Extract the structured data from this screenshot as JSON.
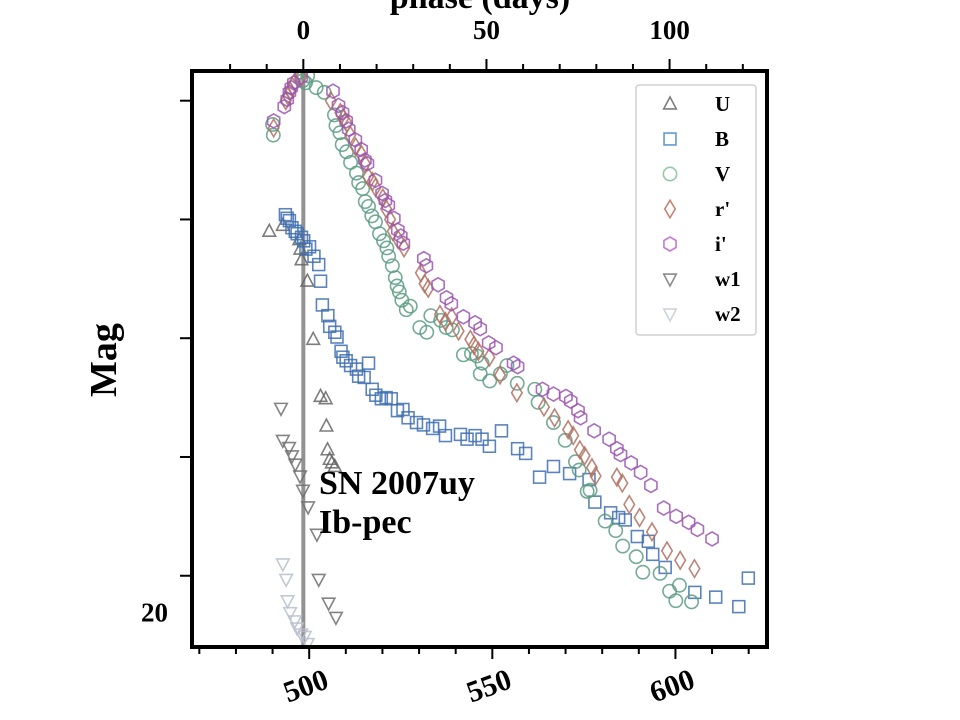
{
  "chart_data": {
    "type": "scatter",
    "title": "",
    "xlabel": "",
    "top_xlabel": "phase (days)",
    "ylabel": "Mag",
    "xlim": [
      468,
      625
    ],
    "ylim": [
      20.3,
      15.45
    ],
    "y_inverted": true,
    "bottom_ticks": [
      500,
      550,
      600
    ],
    "bottom_tick_labels": [
      "500",
      "550",
      "600"
    ],
    "top_ticks": [
      0,
      50,
      100
    ],
    "top_tick_labels": [
      "0",
      "50",
      "100"
    ],
    "top_axis_zero_at_x": 498.4,
    "left_ticks": [
      20
    ],
    "left_tick_labels": [
      "20"
    ],
    "left_major_ticks": [
      15.7,
      16.7,
      17.7,
      18.7,
      19.7
    ],
    "legend_position": "upper right",
    "annotation": {
      "line1": "SN 2007uy",
      "line2": "Ib-pec"
    },
    "max_line_x": 498.4,
    "series": [
      {
        "name": "U",
        "marker": "triangle-up",
        "color": "#666666",
        "points": [
          [
            489.1,
            16.8
          ],
          [
            492.8,
            16.75
          ],
          [
            497.3,
            16.87
          ],
          [
            497.6,
            16.95
          ],
          [
            497.9,
            17.04
          ],
          [
            499.5,
            17.22
          ],
          [
            501.1,
            17.71
          ],
          [
            503.1,
            18.19
          ],
          [
            504.5,
            18.21
          ],
          [
            504.7,
            18.44
          ],
          [
            505.0,
            18.64
          ],
          [
            505.6,
            18.72
          ],
          [
            506.2,
            18.75
          ],
          [
            507.0,
            18.78
          ]
        ]
      },
      {
        "name": "B",
        "marker": "square",
        "color": "#3f6fb0",
        "points": [
          [
            493.5,
            16.66
          ],
          [
            494.0,
            16.69
          ],
          [
            494.6,
            16.71
          ],
          [
            495.3,
            16.77
          ],
          [
            496.2,
            16.8
          ],
          [
            496.7,
            16.82
          ],
          [
            497.9,
            16.85
          ],
          [
            498.5,
            16.88
          ],
          [
            499.1,
            16.95
          ],
          [
            500.1,
            16.93
          ],
          [
            501.3,
            17.01
          ],
          [
            502.6,
            17.08
          ],
          [
            503.1,
            17.22
          ],
          [
            503.6,
            17.42
          ],
          [
            505.1,
            17.51
          ],
          [
            505.6,
            17.6
          ],
          [
            507.0,
            17.65
          ],
          [
            507.6,
            17.69
          ],
          [
            508.7,
            17.81
          ],
          [
            509.2,
            17.86
          ],
          [
            510.1,
            17.89
          ],
          [
            511.3,
            17.93
          ],
          [
            512.9,
            17.96
          ],
          [
            513.5,
            18.02
          ],
          [
            515.0,
            18.03
          ],
          [
            516.2,
            17.91
          ],
          [
            517.2,
            18.13
          ],
          [
            518.2,
            18.18
          ],
          [
            519.7,
            18.21
          ],
          [
            521.0,
            18.2
          ],
          [
            522.4,
            18.21
          ],
          [
            524.1,
            18.31
          ],
          [
            525.6,
            18.3
          ],
          [
            527.0,
            18.37
          ],
          [
            529.3,
            18.41
          ],
          [
            531.2,
            18.43
          ],
          [
            533.7,
            18.46
          ],
          [
            535.6,
            18.44
          ],
          [
            537.2,
            18.52
          ],
          [
            541.3,
            18.51
          ],
          [
            543.1,
            18.55
          ],
          [
            545.3,
            18.52
          ],
          [
            547.2,
            18.55
          ],
          [
            549.2,
            18.61
          ],
          [
            552.5,
            18.48
          ],
          [
            556.9,
            18.63
          ],
          [
            559.1,
            18.67
          ],
          [
            562.9,
            18.87
          ],
          [
            566.7,
            18.78
          ],
          [
            571.1,
            18.84
          ],
          [
            576.4,
            18.89
          ],
          [
            578.0,
            19.08
          ],
          [
            582.3,
            19.17
          ],
          [
            584.5,
            19.21
          ],
          [
            586.3,
            19.23
          ],
          [
            589.6,
            19.37
          ],
          [
            592.6,
            19.41
          ],
          [
            593.8,
            19.52
          ],
          [
            597.2,
            19.63
          ],
          [
            605.3,
            19.84
          ],
          [
            611.0,
            19.88
          ],
          [
            617.3,
            19.96
          ],
          [
            619.9,
            19.72
          ]
        ]
      },
      {
        "name": "V",
        "marker": "circle",
        "color": "#5c9c82",
        "points": [
          [
            490.0,
            15.9
          ],
          [
            490.2,
            15.99
          ],
          [
            498.3,
            15.53
          ],
          [
            499.0,
            15.55
          ],
          [
            499.6,
            15.49
          ],
          [
            501.9,
            15.59
          ],
          [
            504.1,
            15.63
          ],
          [
            506.9,
            15.82
          ],
          [
            507.3,
            15.91
          ],
          [
            508.4,
            15.97
          ],
          [
            509.0,
            16.07
          ],
          [
            510.2,
            16.13
          ],
          [
            511.3,
            16.22
          ],
          [
            512.9,
            16.31
          ],
          [
            513.5,
            16.39
          ],
          [
            514.6,
            16.44
          ],
          [
            515.3,
            16.55
          ],
          [
            516.2,
            16.59
          ],
          [
            517.1,
            16.67
          ],
          [
            518.1,
            16.72
          ],
          [
            519.2,
            16.82
          ],
          [
            520.3,
            16.88
          ],
          [
            521.2,
            16.94
          ],
          [
            521.7,
            17.01
          ],
          [
            522.7,
            17.09
          ],
          [
            523.5,
            17.19
          ],
          [
            524.0,
            17.26
          ],
          [
            524.6,
            17.31
          ],
          [
            525.3,
            17.38
          ],
          [
            526.5,
            17.46
          ],
          [
            527.6,
            17.43
          ],
          [
            530.2,
            17.61
          ],
          [
            532.1,
            17.65
          ],
          [
            533.2,
            17.51
          ],
          [
            535.9,
            17.55
          ],
          [
            537.4,
            17.61
          ],
          [
            539.1,
            17.63
          ],
          [
            542.1,
            17.84
          ],
          [
            544.3,
            17.83
          ],
          [
            545.8,
            17.85
          ],
          [
            546.7,
            18.0
          ],
          [
            547.2,
            17.91
          ],
          [
            549.3,
            18.06
          ],
          [
            552.2,
            18.0
          ],
          [
            554.0,
            17.93
          ],
          [
            556.8,
            18.08
          ],
          [
            561.6,
            18.13
          ],
          [
            562.5,
            18.24
          ],
          [
            566.7,
            18.41
          ],
          [
            569.9,
            18.56
          ],
          [
            572.7,
            18.74
          ],
          [
            573.7,
            18.81
          ],
          [
            575.9,
            18.99
          ],
          [
            576.7,
            18.98
          ],
          [
            580.8,
            19.24
          ],
          [
            583.7,
            19.32
          ],
          [
            585.6,
            19.45
          ],
          [
            589.3,
            19.54
          ],
          [
            591.1,
            19.67
          ],
          [
            595.8,
            19.68
          ],
          [
            598.4,
            19.83
          ],
          [
            600.1,
            19.91
          ],
          [
            601.1,
            19.78
          ],
          [
            604.4,
            19.92
          ]
        ]
      },
      {
        "name": "r'",
        "marker": "diamond",
        "color": "#b07060",
        "points": [
          [
            490.3,
            15.93
          ],
          [
            493.6,
            15.7
          ],
          [
            494.2,
            15.66
          ],
          [
            494.8,
            15.62
          ],
          [
            495.4,
            15.58
          ],
          [
            496.1,
            15.54
          ],
          [
            497.8,
            15.5
          ],
          [
            505.9,
            15.7
          ],
          [
            508.5,
            15.8
          ],
          [
            509.3,
            15.85
          ],
          [
            510.3,
            15.89
          ],
          [
            511.2,
            15.99
          ],
          [
            512.7,
            16.09
          ],
          [
            514.2,
            16.15
          ],
          [
            515.2,
            16.23
          ],
          [
            516.1,
            16.34
          ],
          [
            517.3,
            16.38
          ],
          [
            518.1,
            16.43
          ],
          [
            520.1,
            16.52
          ],
          [
            521.0,
            16.61
          ],
          [
            522.1,
            16.7
          ],
          [
            522.8,
            16.8
          ],
          [
            524.3,
            16.87
          ],
          [
            525.9,
            16.94
          ],
          [
            530.5,
            17.15
          ],
          [
            531.5,
            17.24
          ],
          [
            532.5,
            17.28
          ],
          [
            535.7,
            17.5
          ],
          [
            537.2,
            17.56
          ],
          [
            538.9,
            17.52
          ],
          [
            540.8,
            17.64
          ],
          [
            544.0,
            17.71
          ],
          [
            545.0,
            17.76
          ],
          [
            546.2,
            17.81
          ],
          [
            549.2,
            17.86
          ],
          [
            552.1,
            18.01
          ],
          [
            556.7,
            18.16
          ],
          [
            564.1,
            18.28
          ],
          [
            567.0,
            18.37
          ],
          [
            570.7,
            18.47
          ],
          [
            572.1,
            18.52
          ],
          [
            573.9,
            18.64
          ],
          [
            575.2,
            18.69
          ],
          [
            577.2,
            18.79
          ],
          [
            578.2,
            18.86
          ],
          [
            584.0,
            18.87
          ],
          [
            585.5,
            18.92
          ],
          [
            587.4,
            19.1
          ],
          [
            590.2,
            19.21
          ],
          [
            593.6,
            19.33
          ],
          [
            597.7,
            19.49
          ],
          [
            601.3,
            19.57
          ],
          [
            605.2,
            19.64
          ]
        ]
      },
      {
        "name": "i'",
        "marker": "hexagon",
        "color": "#9a55b0",
        "points": [
          [
            490.3,
            15.87
          ],
          [
            493.2,
            15.75
          ],
          [
            494.0,
            15.69
          ],
          [
            494.6,
            15.63
          ],
          [
            495.1,
            15.59
          ],
          [
            495.8,
            15.55
          ],
          [
            497.8,
            15.5
          ],
          [
            506.5,
            15.62
          ],
          [
            508.0,
            15.74
          ],
          [
            509.1,
            15.8
          ],
          [
            510.1,
            15.87
          ],
          [
            510.8,
            15.94
          ],
          [
            512.6,
            16.03
          ],
          [
            514.2,
            16.11
          ],
          [
            515.2,
            16.2
          ],
          [
            515.9,
            16.23
          ],
          [
            518.1,
            16.37
          ],
          [
            519.9,
            16.48
          ],
          [
            520.8,
            16.54
          ],
          [
            521.6,
            16.58
          ],
          [
            523.1,
            16.69
          ],
          [
            524.2,
            16.79
          ],
          [
            525.0,
            16.84
          ],
          [
            525.7,
            16.9
          ],
          [
            531.3,
            17.03
          ],
          [
            532.0,
            17.09
          ],
          [
            535.2,
            17.25
          ],
          [
            537.5,
            17.36
          ],
          [
            538.8,
            17.41
          ],
          [
            542.1,
            17.52
          ],
          [
            545.3,
            17.57
          ],
          [
            546.7,
            17.62
          ],
          [
            549.0,
            17.74
          ],
          [
            551.0,
            17.78
          ],
          [
            555.8,
            17.91
          ],
          [
            556.9,
            17.94
          ],
          [
            563.7,
            18.13
          ],
          [
            566.7,
            18.17
          ],
          [
            570.1,
            18.19
          ],
          [
            571.4,
            18.23
          ],
          [
            573.4,
            18.31
          ],
          [
            574.1,
            18.37
          ],
          [
            577.8,
            18.48
          ],
          [
            581.9,
            18.55
          ],
          [
            584.0,
            18.63
          ],
          [
            585.0,
            18.68
          ],
          [
            587.9,
            18.75
          ],
          [
            590.5,
            18.83
          ],
          [
            593.3,
            18.94
          ],
          [
            596.8,
            19.13
          ],
          [
            600.2,
            19.2
          ],
          [
            603.6,
            19.25
          ],
          [
            606.0,
            19.31
          ],
          [
            610.0,
            19.39
          ]
        ]
      },
      {
        "name": "w1",
        "marker": "triangle-down",
        "color": "#6f6f6f",
        "points": [
          [
            492.3,
            18.29
          ],
          [
            492.8,
            18.56
          ],
          [
            494.5,
            18.62
          ],
          [
            495.3,
            18.69
          ],
          [
            496.2,
            18.76
          ],
          [
            497.5,
            18.86
          ],
          [
            498.3,
            18.98
          ],
          [
            499.7,
            19.12
          ],
          [
            502.1,
            19.35
          ],
          [
            502.6,
            19.73
          ],
          [
            505.3,
            19.93
          ],
          [
            507.3,
            20.05
          ]
        ]
      },
      {
        "name": "w2",
        "marker": "triangle-down",
        "color": "#b8c0cc",
        "points": [
          [
            492.8,
            19.6
          ],
          [
            493.7,
            19.73
          ],
          [
            494.1,
            19.91
          ],
          [
            494.8,
            20.01
          ],
          [
            496.1,
            20.08
          ],
          [
            496.7,
            20.14
          ],
          [
            497.8,
            20.19
          ],
          [
            498.8,
            20.21
          ],
          [
            499.6,
            20.27
          ],
          [
            500.5,
            20.36
          ],
          [
            501.7,
            20.42
          ],
          [
            502.6,
            20.47
          ]
        ]
      }
    ]
  }
}
